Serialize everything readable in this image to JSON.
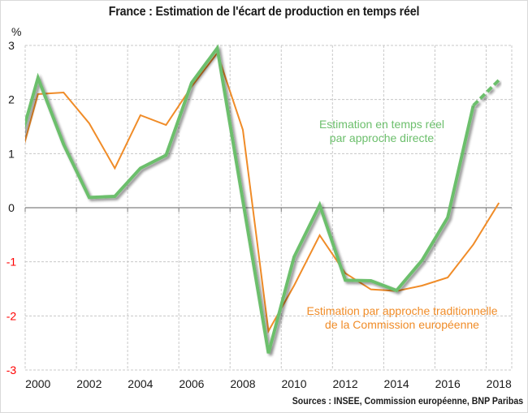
{
  "chart_data": {
    "type": "line",
    "title": "France : Estimation de l'écart de production en temps réel",
    "ylabel": "%",
    "xlabel": "",
    "source": "Sources : INSEE, Commission européenne, BNP Paribas",
    "ylim": [
      -3,
      3
    ],
    "yticks": [
      3,
      2,
      1,
      0,
      -1,
      -2,
      -3
    ],
    "ytick_labels": [
      "3",
      "2",
      "1",
      "0",
      "-1",
      "-2",
      "-3"
    ],
    "colors": {
      "positive_tick": "#1a1a1a",
      "negative_tick": "#ff0000",
      "green": "#6cbf6c",
      "orange": "#f08c28",
      "grid": "#c8c8c8",
      "zero_axis": "#808080"
    },
    "x_range": [
      1999.5,
      2018.5
    ],
    "xtick_labels": [
      "2000",
      "2002",
      "2004",
      "2006",
      "2008",
      "2010",
      "2012",
      "2014",
      "2016",
      "2018"
    ],
    "grid": true,
    "x": [
      1999,
      2000,
      2001,
      2002,
      2003,
      2004,
      2005,
      2006,
      2007,
      2008,
      2009,
      2010,
      2011,
      2012,
      2013,
      2014,
      2015,
      2016,
      2017,
      2018
    ],
    "series": [
      {
        "name": "Estimation en temps réel par approche directe",
        "color": "#6cbf6c",
        "values": [
          0.72,
          2.4,
          1.17,
          0.19,
          0.21,
          0.73,
          0.97,
          2.31,
          2.95,
          0.13,
          -2.69,
          -0.91,
          0.05,
          -1.34,
          -1.35,
          -1.53,
          -0.97,
          -0.18,
          1.89,
          2.36
        ],
        "dashed_from": 2017
      },
      {
        "name": "Estimation par approche traditionnelle de la Commission européenne",
        "color": "#f08c28",
        "values": [
          0.38,
          2.1,
          2.13,
          1.56,
          0.73,
          1.71,
          1.53,
          2.24,
          2.86,
          1.44,
          -2.28,
          -1.44,
          -0.51,
          -1.21,
          -1.51,
          -1.54,
          -1.44,
          -1.29,
          -0.68,
          0.09
        ]
      }
    ],
    "annotations": [
      {
        "series": 0,
        "lines": [
          "Estimation en temps réel",
          "par approche directe"
        ],
        "color": "#6cbf6c",
        "position": "upper-right, left of 2017"
      },
      {
        "series": 1,
        "lines": [
          "Estimation par approche traditionnelle",
          "de la Commission européenne"
        ],
        "color": "#f08c28",
        "position": "lower-right"
      }
    ]
  }
}
